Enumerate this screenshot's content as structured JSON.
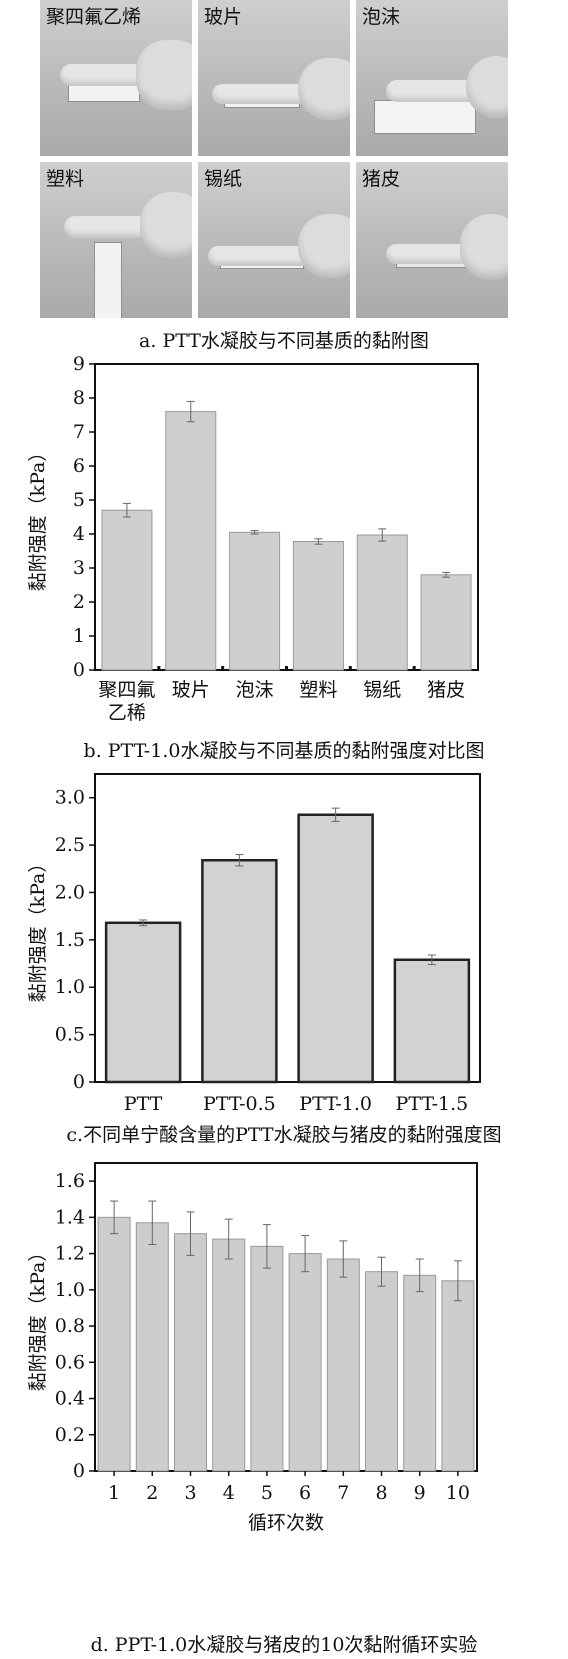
{
  "panel_a": {
    "photos": [
      "聚四氟乙烯",
      "玻片",
      "泡沫",
      "塑料",
      "锡纸",
      "猪皮"
    ],
    "caption": "a. PTT水凝胶与不同基质的黏附图"
  },
  "captions": {
    "b": "b. PTT-1.0水凝胶与不同基质的黏附强度对比图",
    "c": "c.不同单宁酸含量的PTT水凝胶与猪皮的黏附强度图",
    "d": "d. PPT-1.0水凝胶与猪皮的10次黏附循环实验"
  },
  "chart_data": [
    {
      "id": "b",
      "type": "bar",
      "categories": [
        "聚四氟\n乙稀",
        "玻片",
        "泡沫",
        "塑料",
        "锡纸",
        "猪皮"
      ],
      "values": [
        4.7,
        7.6,
        4.05,
        3.78,
        3.97,
        2.8
      ],
      "errors": [
        0.2,
        0.3,
        0.05,
        0.08,
        0.18,
        0.07
      ],
      "ylabel": "黏附强度（kPa）",
      "xlabel": "",
      "ylim": [
        0,
        9
      ],
      "yticks": [
        0,
        1,
        2,
        3,
        4,
        5,
        6,
        7,
        8,
        9
      ],
      "bar_color": "#cfcfcf"
    },
    {
      "id": "c",
      "type": "bar",
      "categories": [
        "PTT",
        "PTT-0.5",
        "PTT-1.0",
        "PTT-1.5"
      ],
      "values": [
        1.68,
        2.34,
        2.82,
        1.29
      ],
      "errors": [
        0.03,
        0.06,
        0.07,
        0.05
      ],
      "ylabel": "黏附强度（kPa）",
      "xlabel": "",
      "ylim": [
        0,
        3.25
      ],
      "yticks": [
        "0",
        "0.5",
        "1.0",
        "1.5",
        "2.0",
        "2.5",
        "3.0"
      ],
      "bar_color": "#d2d2d2"
    },
    {
      "id": "d",
      "type": "bar",
      "categories": [
        "1",
        "2",
        "3",
        "4",
        "5",
        "6",
        "7",
        "8",
        "9",
        "10"
      ],
      "values": [
        1.4,
        1.37,
        1.31,
        1.28,
        1.24,
        1.2,
        1.17,
        1.1,
        1.08,
        1.05
      ],
      "errors": [
        0.09,
        0.12,
        0.12,
        0.11,
        0.12,
        0.1,
        0.1,
        0.08,
        0.09,
        0.11
      ],
      "ylabel": "黏附强度（kPa）",
      "xlabel": "循环次数",
      "ylim": [
        0,
        1.7
      ],
      "yticks": [
        "0",
        "0.2",
        "0.4",
        "0.6",
        "0.8",
        "1.0",
        "1.2",
        "1.4",
        "1.6"
      ],
      "bar_color": "#cdcdcd"
    }
  ]
}
